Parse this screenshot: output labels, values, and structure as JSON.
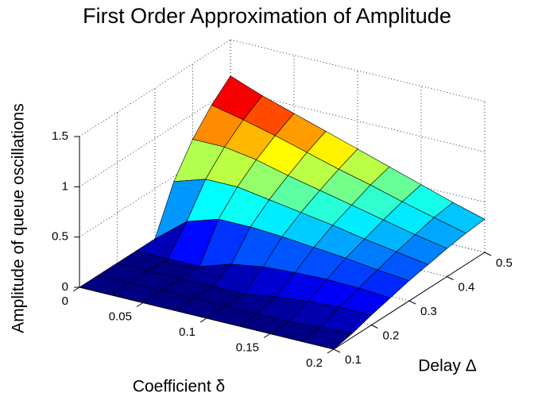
{
  "chart_data": {
    "type": "surface",
    "title": "First Order Approximation of Amplitude",
    "xlabel": "Coefficient δ",
    "ylabel": "Delay Δ",
    "zlabel": "Amplitude of queue oscillations",
    "x": [
      0,
      0.025,
      0.05,
      0.075,
      0.1,
      0.125,
      0.15,
      0.175,
      0.2
    ],
    "y": [
      0.1,
      0.15,
      0.2,
      0.25,
      0.3,
      0.35,
      0.4,
      0.45,
      0.5
    ],
    "z": [
      [
        0,
        0,
        0,
        0,
        0,
        0.45,
        0.75,
        0.97,
        1.14
      ],
      [
        0,
        0,
        0,
        0,
        0.25,
        0.55,
        0.75,
        0.9,
        1.02
      ],
      [
        0,
        0,
        0,
        0,
        0.35,
        0.55,
        0.7,
        0.82,
        0.92
      ],
      [
        0,
        0,
        0,
        0.1,
        0.35,
        0.5,
        0.62,
        0.73,
        0.82
      ],
      [
        0,
        0,
        0,
        0.15,
        0.33,
        0.45,
        0.55,
        0.64,
        0.72
      ],
      [
        0,
        0,
        0.05,
        0.17,
        0.3,
        0.4,
        0.48,
        0.56,
        0.62
      ],
      [
        0,
        0,
        0.08,
        0.18,
        0.27,
        0.34,
        0.41,
        0.47,
        0.52
      ],
      [
        0,
        0.02,
        0.1,
        0.17,
        0.23,
        0.29,
        0.34,
        0.39,
        0.42
      ],
      [
        0,
        0.04,
        0.1,
        0.15,
        0.2,
        0.24,
        0.28,
        0.31,
        0.33
      ]
    ],
    "xlim": [
      0,
      0.2
    ],
    "xticks": [
      0,
      0.05,
      0.1,
      0.15,
      0.2
    ],
    "ylim": [
      0.1,
      0.5
    ],
    "yticks": [
      0.1,
      0.2,
      0.3,
      0.4,
      0.5
    ],
    "zlim": [
      0,
      1.5
    ],
    "zticks": [
      0,
      0.5,
      1,
      1.5
    ],
    "colormap": "jet",
    "grid": true
  }
}
